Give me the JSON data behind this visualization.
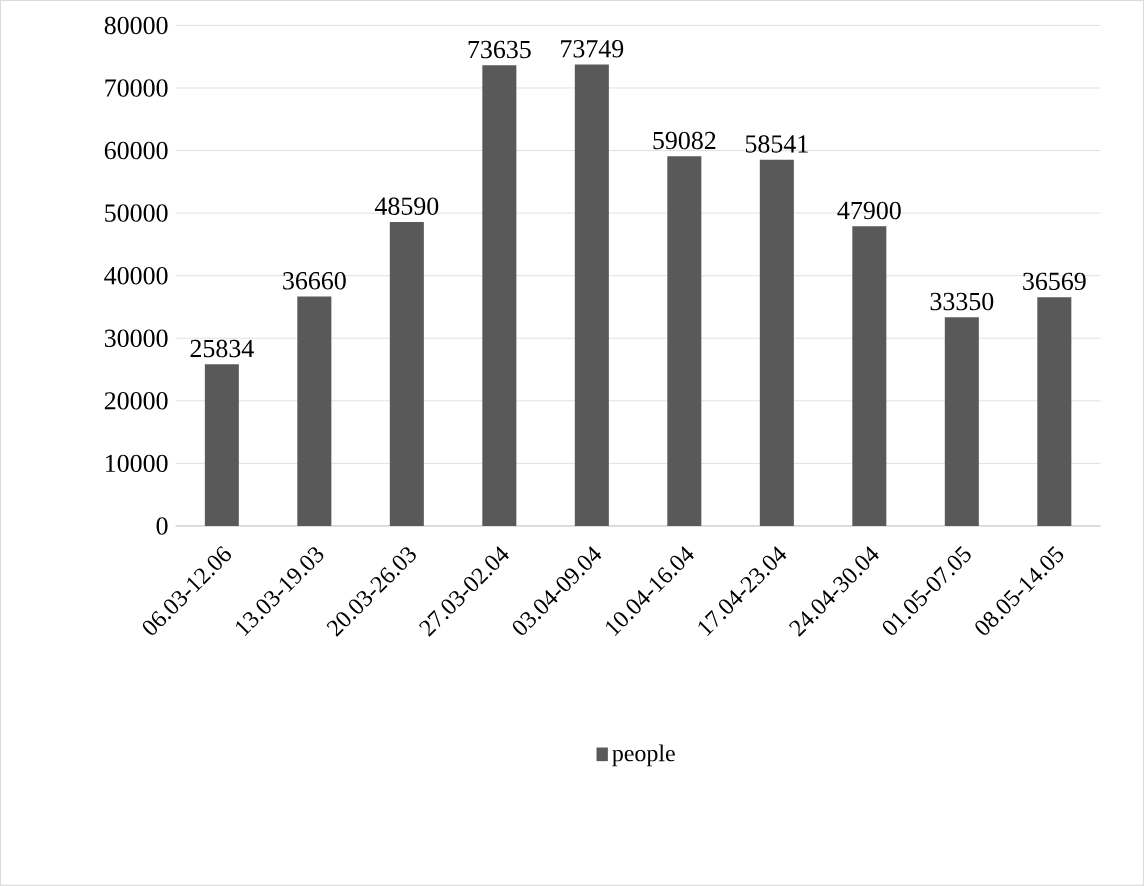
{
  "chart_data": {
    "type": "bar",
    "categories": [
      "06.03-12.06",
      "13.03-19.03",
      "20.03-26.03",
      "27.03-02.04",
      "03.04-09.04",
      "10.04-16.04",
      "17.04-23.04",
      "24.04-30.04",
      "01.05-07.05",
      "08.05-14.05"
    ],
    "series": [
      {
        "name": "people",
        "color": "#595959",
        "values": [
          25834,
          36660,
          48590,
          73635,
          73749,
          59082,
          58541,
          47900,
          33350,
          36569
        ]
      }
    ],
    "ylim": [
      0,
      80000
    ],
    "yticks": [
      0,
      10000,
      20000,
      30000,
      40000,
      50000,
      60000,
      70000,
      80000
    ],
    "grid": "y",
    "legend": "bottom",
    "data_labels": true
  }
}
